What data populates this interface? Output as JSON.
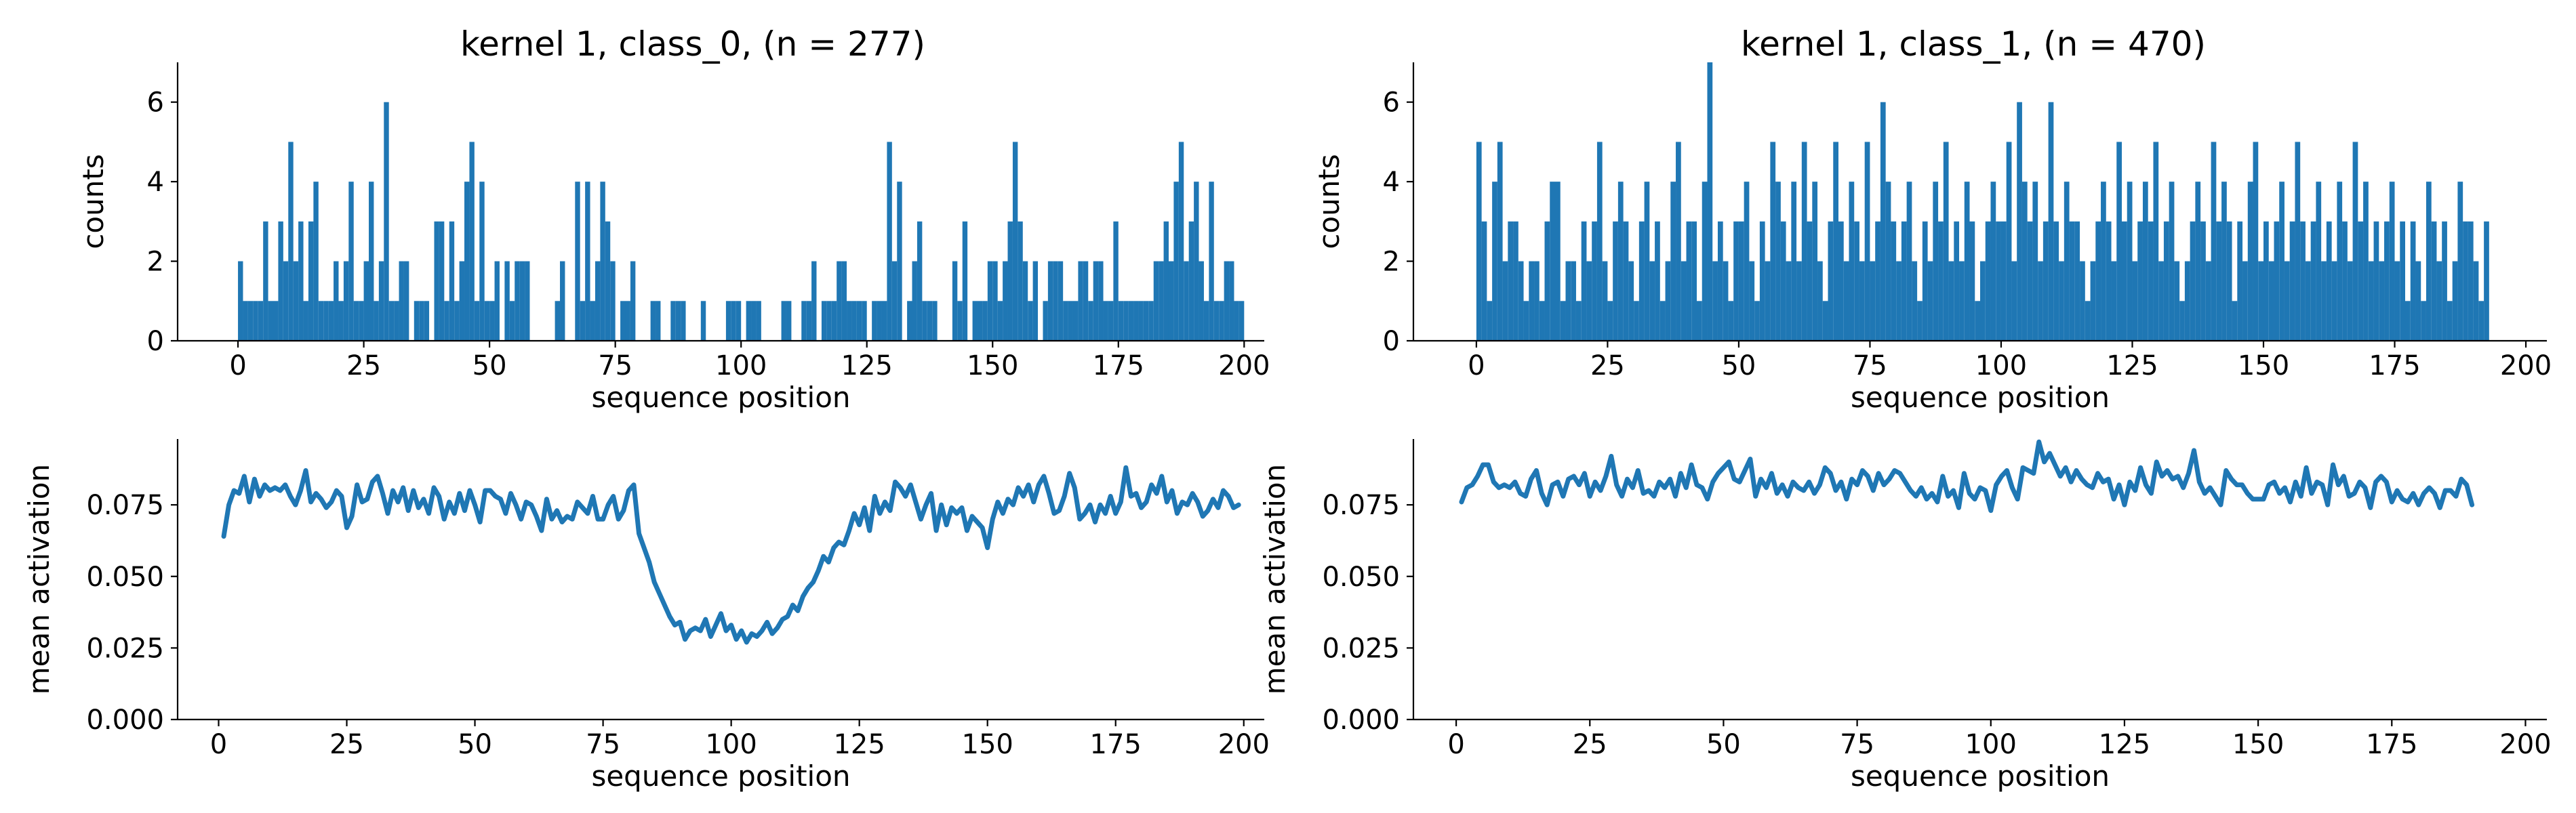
{
  "colors": {
    "series": "#1f77b4"
  },
  "charts": [
    {
      "id": "c0-hist",
      "chart_data": {
        "type": "bar",
        "title": "kernel 1, class_0, (n = 277)",
        "xlabel": "sequence position",
        "ylabel": "counts",
        "xlim": [
          -12,
          204
        ],
        "ylim": [
          0,
          7
        ],
        "xticks": [
          0,
          25,
          50,
          75,
          100,
          125,
          150,
          175,
          200
        ],
        "yticks": [
          0,
          2,
          4,
          6
        ],
        "bin_width": 1,
        "x_start": 0,
        "values": [
          2,
          1,
          1,
          1,
          1,
          3,
          1,
          1,
          3,
          2,
          5,
          2,
          3,
          1,
          3,
          4,
          1,
          1,
          1,
          2,
          1,
          2,
          4,
          1,
          1,
          2,
          4,
          1,
          2,
          6,
          1,
          1,
          2,
          2,
          0,
          1,
          1,
          1,
          0,
          3,
          3,
          1,
          3,
          1,
          2,
          4,
          5,
          1,
          4,
          1,
          1,
          2,
          0,
          2,
          1,
          2,
          2,
          2,
          0,
          0,
          0,
          0,
          0,
          1,
          2,
          0,
          0,
          4,
          1,
          4,
          1,
          2,
          4,
          3,
          2,
          0,
          1,
          1,
          2,
          0,
          0,
          0,
          1,
          1,
          0,
          0,
          1,
          1,
          1,
          0,
          0,
          0,
          1,
          0,
          0,
          0,
          0,
          1,
          1,
          1,
          0,
          1,
          1,
          1,
          0,
          0,
          0,
          0,
          1,
          1,
          0,
          0,
          1,
          1,
          2,
          0,
          1,
          1,
          1,
          2,
          2,
          1,
          1,
          1,
          1,
          0,
          1,
          1,
          1,
          5,
          2,
          4,
          0,
          1,
          2,
          3,
          1,
          1,
          1,
          0,
          0,
          0,
          2,
          1,
          3,
          0,
          1,
          1,
          1,
          2,
          2,
          1,
          2,
          3,
          5,
          3,
          2,
          1,
          2,
          0,
          1,
          2,
          2,
          2,
          1,
          1,
          1,
          2,
          2,
          1,
          2,
          2,
          1,
          1,
          3,
          1,
          1,
          1,
          1,
          1,
          1,
          1,
          2,
          2,
          3,
          2,
          4,
          5,
          2,
          3,
          4,
          2,
          1,
          4,
          1,
          1,
          2,
          2,
          1,
          1
        ]
      }
    },
    {
      "id": "c1-hist",
      "chart_data": {
        "type": "bar",
        "title": "kernel 1, class_1, (n = 470)",
        "xlabel": "sequence position",
        "ylabel": "counts",
        "xlim": [
          -12,
          204
        ],
        "ylim": [
          0,
          7
        ],
        "xticks": [
          0,
          25,
          50,
          75,
          100,
          125,
          150,
          175,
          200
        ],
        "yticks": [
          0,
          2,
          4,
          6
        ],
        "bin_width": 1,
        "x_start": 0,
        "values": [
          5,
          3,
          1,
          4,
          5,
          2,
          3,
          3,
          2,
          1,
          2,
          2,
          1,
          3,
          4,
          4,
          1,
          2,
          2,
          1,
          3,
          2,
          3,
          5,
          2,
          1,
          3,
          4,
          3,
          2,
          1,
          3,
          4,
          2,
          3,
          1,
          2,
          4,
          5,
          2,
          3,
          3,
          1,
          4,
          7,
          2,
          3,
          2,
          1,
          3,
          3,
          4,
          2,
          1,
          3,
          2,
          5,
          4,
          3,
          2,
          4,
          2,
          5,
          3,
          4,
          2,
          1,
          3,
          5,
          3,
          2,
          4,
          3,
          2,
          5,
          2,
          3,
          6,
          4,
          3,
          2,
          3,
          4,
          2,
          1,
          3,
          2,
          4,
          3,
          5,
          2,
          3,
          2,
          4,
          3,
          1,
          2,
          3,
          4,
          3,
          3,
          5,
          2,
          6,
          4,
          3,
          4,
          2,
          3,
          6,
          3,
          2,
          4,
          3,
          3,
          2,
          1,
          2,
          3,
          4,
          3,
          2,
          5,
          3,
          4,
          2,
          3,
          4,
          3,
          5,
          2,
          3,
          4,
          2,
          1,
          2,
          3,
          4,
          3,
          2,
          5,
          3,
          4,
          3,
          1,
          3,
          2,
          4,
          5,
          2,
          3,
          2,
          3,
          4,
          2,
          3,
          5,
          3,
          2,
          3,
          4,
          2,
          3,
          2,
          4,
          3,
          2,
          5,
          3,
          4,
          2,
          3,
          2,
          3,
          4,
          2,
          3,
          1,
          3,
          2,
          1,
          4,
          3,
          2,
          3,
          1,
          2,
          4,
          3,
          3,
          2,
          1,
          3
        ]
      }
    },
    {
      "id": "c0-line",
      "chart_data": {
        "type": "line",
        "xlabel": "sequence position",
        "ylabel": "mean activation",
        "xlim": [
          -8,
          204
        ],
        "ylim": [
          0,
          0.098
        ],
        "xticks": [
          0,
          25,
          50,
          75,
          100,
          125,
          150,
          175,
          200
        ],
        "yticks": [
          0.0,
          0.025,
          0.05,
          0.075
        ],
        "ytick_labels": [
          "0.000",
          "0.025",
          "0.050",
          "0.075"
        ],
        "x_start": 1,
        "values": [
          0.064,
          0.075,
          0.08,
          0.079,
          0.085,
          0.076,
          0.084,
          0.078,
          0.082,
          0.08,
          0.081,
          0.08,
          0.082,
          0.078,
          0.075,
          0.08,
          0.087,
          0.076,
          0.079,
          0.077,
          0.074,
          0.076,
          0.08,
          0.078,
          0.067,
          0.071,
          0.082,
          0.076,
          0.077,
          0.083,
          0.085,
          0.079,
          0.072,
          0.08,
          0.076,
          0.081,
          0.073,
          0.08,
          0.074,
          0.077,
          0.072,
          0.081,
          0.078,
          0.07,
          0.076,
          0.072,
          0.079,
          0.073,
          0.08,
          0.075,
          0.069,
          0.08,
          0.08,
          0.078,
          0.077,
          0.072,
          0.079,
          0.075,
          0.07,
          0.076,
          0.075,
          0.071,
          0.066,
          0.077,
          0.07,
          0.073,
          0.069,
          0.071,
          0.07,
          0.076,
          0.074,
          0.072,
          0.078,
          0.07,
          0.07,
          0.075,
          0.078,
          0.07,
          0.073,
          0.08,
          0.082,
          0.065,
          0.06,
          0.055,
          0.048,
          0.044,
          0.04,
          0.036,
          0.033,
          0.034,
          0.028,
          0.031,
          0.032,
          0.031,
          0.035,
          0.029,
          0.033,
          0.037,
          0.031,
          0.033,
          0.028,
          0.031,
          0.027,
          0.03,
          0.029,
          0.031,
          0.034,
          0.03,
          0.032,
          0.035,
          0.036,
          0.04,
          0.038,
          0.043,
          0.046,
          0.048,
          0.052,
          0.057,
          0.055,
          0.06,
          0.062,
          0.061,
          0.066,
          0.072,
          0.068,
          0.074,
          0.066,
          0.078,
          0.072,
          0.076,
          0.073,
          0.083,
          0.081,
          0.078,
          0.082,
          0.076,
          0.07,
          0.075,
          0.079,
          0.066,
          0.075,
          0.068,
          0.074,
          0.072,
          0.074,
          0.066,
          0.071,
          0.069,
          0.067,
          0.06,
          0.07,
          0.076,
          0.072,
          0.077,
          0.075,
          0.081,
          0.078,
          0.082,
          0.076,
          0.082,
          0.085,
          0.079,
          0.072,
          0.073,
          0.078,
          0.086,
          0.081,
          0.07,
          0.072,
          0.075,
          0.069,
          0.075,
          0.072,
          0.078,
          0.072,
          0.076,
          0.088,
          0.078,
          0.079,
          0.074,
          0.076,
          0.082,
          0.079,
          0.085,
          0.076,
          0.08,
          0.072,
          0.076,
          0.075,
          0.079,
          0.076,
          0.071,
          0.073,
          0.077,
          0.074,
          0.08,
          0.078,
          0.074,
          0.075
        ]
      }
    },
    {
      "id": "c1-line",
      "chart_data": {
        "type": "line",
        "xlabel": "sequence position",
        "ylabel": "mean activation",
        "xlim": [
          -8,
          204
        ],
        "ylim": [
          0,
          0.098
        ],
        "xticks": [
          0,
          25,
          50,
          75,
          100,
          125,
          150,
          175,
          200
        ],
        "yticks": [
          0.0,
          0.025,
          0.05,
          0.075
        ],
        "ytick_labels": [
          "0.000",
          "0.025",
          "0.050",
          "0.075"
        ],
        "x_start": 1,
        "values": [
          0.076,
          0.081,
          0.082,
          0.085,
          0.089,
          0.089,
          0.083,
          0.081,
          0.082,
          0.081,
          0.083,
          0.079,
          0.078,
          0.084,
          0.087,
          0.079,
          0.075,
          0.082,
          0.083,
          0.078,
          0.084,
          0.085,
          0.082,
          0.086,
          0.078,
          0.083,
          0.08,
          0.085,
          0.092,
          0.082,
          0.078,
          0.084,
          0.081,
          0.087,
          0.079,
          0.08,
          0.078,
          0.083,
          0.081,
          0.084,
          0.078,
          0.086,
          0.081,
          0.089,
          0.082,
          0.081,
          0.077,
          0.083,
          0.086,
          0.088,
          0.09,
          0.084,
          0.083,
          0.087,
          0.091,
          0.078,
          0.084,
          0.081,
          0.086,
          0.079,
          0.082,
          0.078,
          0.083,
          0.081,
          0.08,
          0.083,
          0.079,
          0.082,
          0.088,
          0.086,
          0.08,
          0.083,
          0.077,
          0.084,
          0.082,
          0.087,
          0.085,
          0.08,
          0.086,
          0.082,
          0.084,
          0.087,
          0.086,
          0.083,
          0.08,
          0.078,
          0.081,
          0.077,
          0.079,
          0.076,
          0.085,
          0.078,
          0.08,
          0.074,
          0.086,
          0.079,
          0.077,
          0.081,
          0.08,
          0.073,
          0.082,
          0.085,
          0.087,
          0.081,
          0.077,
          0.088,
          0.087,
          0.086,
          0.097,
          0.09,
          0.093,
          0.089,
          0.085,
          0.088,
          0.083,
          0.087,
          0.084,
          0.082,
          0.081,
          0.086,
          0.083,
          0.084,
          0.077,
          0.082,
          0.075,
          0.083,
          0.08,
          0.088,
          0.082,
          0.079,
          0.09,
          0.085,
          0.087,
          0.084,
          0.085,
          0.081,
          0.086,
          0.094,
          0.083,
          0.079,
          0.081,
          0.078,
          0.075,
          0.087,
          0.084,
          0.082,
          0.082,
          0.079,
          0.077,
          0.077,
          0.077,
          0.082,
          0.083,
          0.079,
          0.081,
          0.076,
          0.083,
          0.078,
          0.088,
          0.079,
          0.083,
          0.082,
          0.075,
          0.089,
          0.082,
          0.085,
          0.078,
          0.079,
          0.083,
          0.081,
          0.074,
          0.083,
          0.085,
          0.083,
          0.076,
          0.08,
          0.077,
          0.076,
          0.079,
          0.075,
          0.079,
          0.081,
          0.079,
          0.074,
          0.08,
          0.08,
          0.078,
          0.084,
          0.082,
          0.075
        ]
      }
    }
  ]
}
